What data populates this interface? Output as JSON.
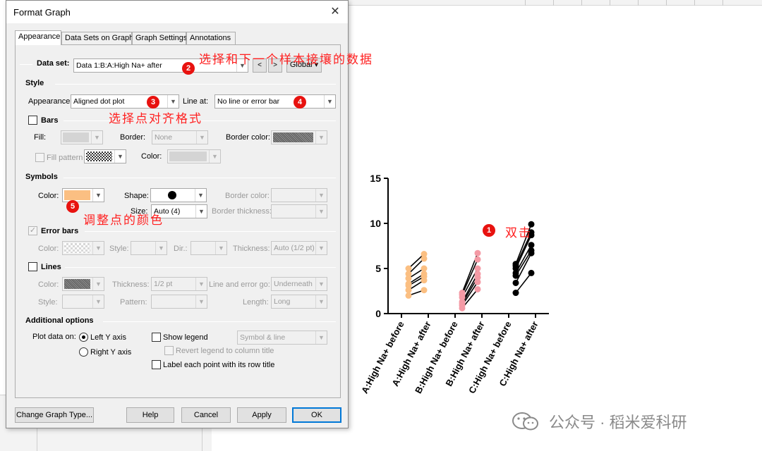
{
  "dialog": {
    "title": "Format Graph",
    "close_icon": "close-icon",
    "tabs": [
      {
        "label": "Appearance",
        "active": true
      },
      {
        "label": "Data Sets on Graph",
        "active": false
      },
      {
        "label": "Graph Settings",
        "active": false
      },
      {
        "label": "Annotations",
        "active": false
      }
    ],
    "dataset": {
      "label": "Data set:",
      "value": "Data 1:B:A:High Na+ after",
      "prev": "<",
      "next": ">",
      "scope": "Global"
    },
    "style": {
      "heading": "Style",
      "appearance_label": "Appearance:",
      "appearance_value": "Aligned dot plot",
      "line_at_label": "Line at:",
      "line_at_value": "No line or error bar"
    },
    "bars": {
      "heading": "Bars",
      "fill_label": "Fill:",
      "border_label": "Border:",
      "border_value": "None",
      "border_color_label": "Border color:",
      "fill_pattern_label": "Fill pattern",
      "color_label": "Color:"
    },
    "symbols": {
      "heading": "Symbols",
      "color_label": "Color:",
      "color_value": "#fbbf82",
      "shape_label": "Shape:",
      "shape_icon": "filled-circle-icon",
      "size_label": "Size:",
      "size_value": "Auto (4)",
      "border_color_label": "Border color:",
      "border_thickness_label": "Border thickness:"
    },
    "error_bars": {
      "heading": "Error bars",
      "color_label": "Color:",
      "style_label": "Style:",
      "dir_label": "Dir.:",
      "thickness_label": "Thickness:",
      "thickness_value": "Auto (1/2 pt)"
    },
    "lines": {
      "heading": "Lines",
      "color_label": "Color:",
      "thickness_label": "Thickness:",
      "thickness_value": "1/2 pt",
      "line_error_label": "Line and error go:",
      "line_error_value": "Underneath",
      "style_label": "Style:",
      "pattern_label": "Pattern:",
      "length_label": "Length:",
      "length_value": "Long"
    },
    "additional": {
      "heading": "Additional options",
      "plot_on_label": "Plot data on:",
      "left_axis": "Left Y axis",
      "right_axis": "Right  Y axis",
      "show_legend": "Show legend",
      "legend_mode": "Symbol & line",
      "revert_legend": "Revert legend to column title",
      "label_points": "Label each point with its row title"
    },
    "buttons": {
      "change_type": "Change Graph Type...",
      "help": "Help",
      "cancel": "Cancel",
      "apply": "Apply",
      "ok": "OK"
    }
  },
  "annotations": {
    "step1": "1",
    "step1_text": "双击",
    "step2": "2",
    "step2_text": "选择和下一个样本接壤的数据",
    "step3": "3",
    "step3_text": "选择点对齐格式",
    "step4": "4",
    "step5": "5",
    "step5_text": "调整点的颜色"
  },
  "watermark": {
    "text": "公众号 · 稻米爱科研",
    "icon": "wechat-icon"
  },
  "chart_data": {
    "type": "line",
    "categories": [
      "A:High Na+ before",
      "A:High Na+ after",
      "B:High Na+ before",
      "B:High Na+ after",
      "C:High Na+ before",
      "C:High Na+ after"
    ],
    "ylim": [
      0,
      15
    ],
    "yticks": [
      "0",
      "5",
      "10",
      "15"
    ],
    "pairs": [
      {
        "group": "A",
        "color": "#fbbf82",
        "before": [
          2.0,
          2.6,
          3.1,
          3.3,
          3.9,
          4.4,
          5.0
        ],
        "after": [
          2.6,
          3.7,
          4.1,
          4.4,
          5.0,
          6.1,
          6.6
        ]
      },
      {
        "group": "B",
        "color": "#f49aa5",
        "before": [
          0.6,
          0.9,
          1.1,
          1.3,
          1.8,
          2.1,
          2.3
        ],
        "after": [
          2.7,
          3.5,
          4.0,
          4.4,
          5.0,
          6.0,
          6.7
        ]
      },
      {
        "group": "C",
        "color": "#000000",
        "before": [
          2.3,
          3.4,
          4.2,
          4.5,
          5.0,
          5.3,
          5.5
        ],
        "after": [
          4.5,
          6.7,
          7.0,
          7.6,
          8.7,
          9.0,
          9.9
        ]
      }
    ],
    "grid": false,
    "legend": "none"
  }
}
